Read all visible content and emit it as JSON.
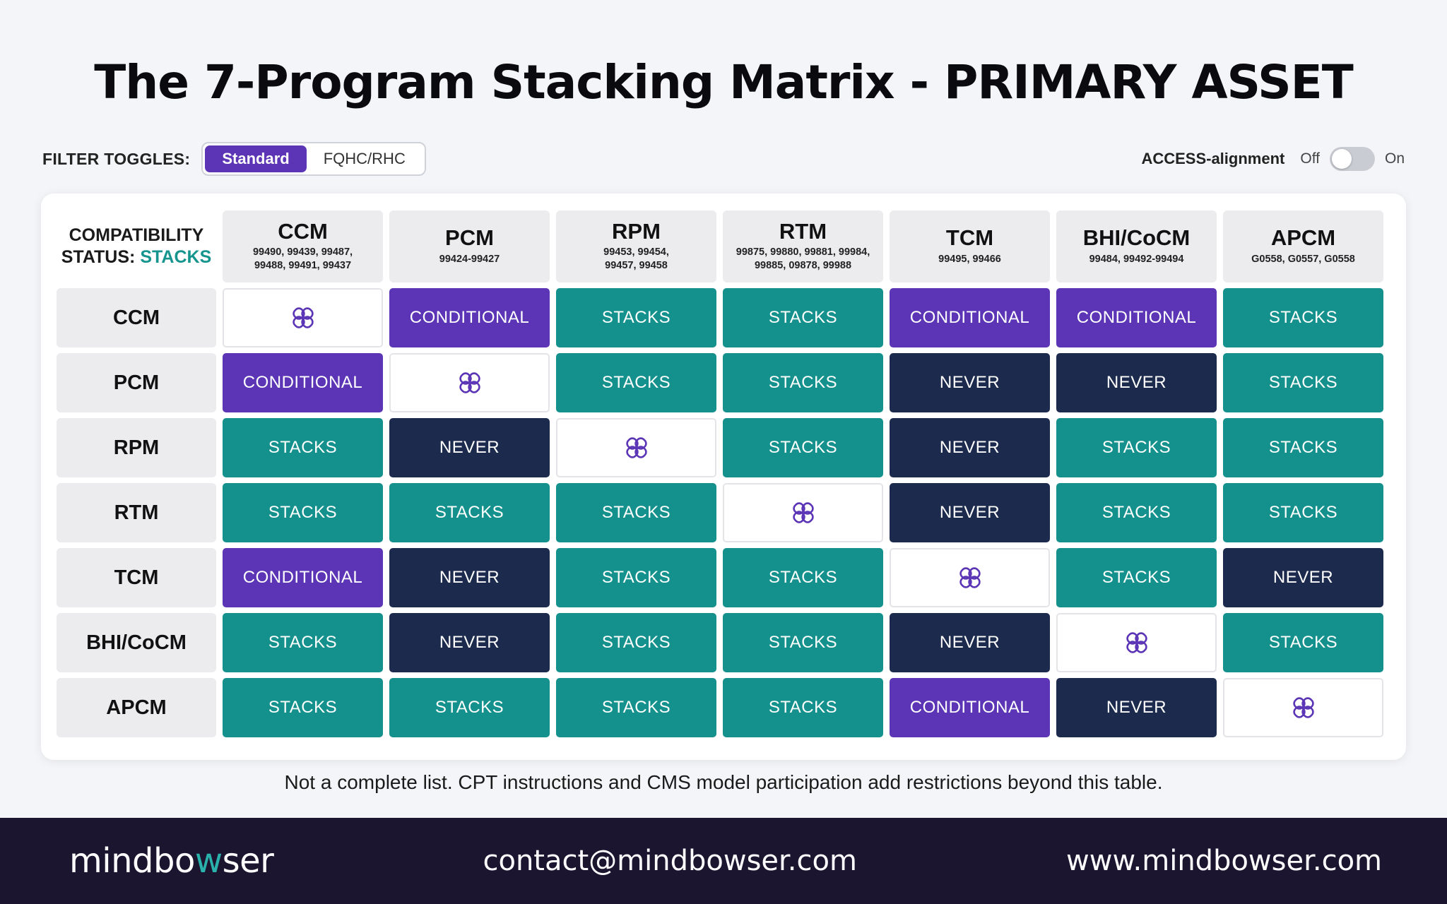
{
  "title": "The 7-Program Stacking Matrix - PRIMARY ASSET",
  "filters": {
    "label": "FILTER TOGGLES:",
    "options": [
      "Standard",
      "FQHC/RHC"
    ],
    "selected": "Standard"
  },
  "access_alignment": {
    "label": "ACCESS-alignment",
    "off_label": "Off",
    "on_label": "On",
    "state": "Off"
  },
  "matrix": {
    "corner_line1": "COMPATIBILITY",
    "corner_line2": "STATUS:",
    "corner_highlight": "STACKS",
    "columns": [
      {
        "code": "CCM",
        "cpt_line1": "99490, 99439, 99487,",
        "cpt_line2": "99488, 99491, 99437"
      },
      {
        "code": "PCM",
        "cpt_line1": "99424-99427",
        "cpt_line2": ""
      },
      {
        "code": "RPM",
        "cpt_line1": "99453, 99454,",
        "cpt_line2": "99457, 99458"
      },
      {
        "code": "RTM",
        "cpt_line1": "99875, 99880, 99881, 99984,",
        "cpt_line2": "99885, 09878, 99988"
      },
      {
        "code": "TCM",
        "cpt_line1": "99495, 99466",
        "cpt_line2": ""
      },
      {
        "code": "BHI/CoCM",
        "cpt_line1": "99484, 99492-99494",
        "cpt_line2": ""
      },
      {
        "code": "APCM",
        "cpt_line1": "G0558, G0557, G0558",
        "cpt_line2": ""
      }
    ],
    "rows": [
      {
        "label": "CCM",
        "cells": [
          "SELF",
          "CONDITIONAL",
          "STACKS",
          "STACKS",
          "CONDITIONAL",
          "CONDITIONAL",
          "STACKS"
        ]
      },
      {
        "label": "PCM",
        "cells": [
          "CONDITIONAL",
          "SELF",
          "STACKS",
          "STACKS",
          "NEVER",
          "NEVER",
          "STACKS"
        ]
      },
      {
        "label": "RPM",
        "cells": [
          "STACKS",
          "NEVER",
          "SELF",
          "STACKS",
          "NEVER",
          "STACKS",
          "STACKS"
        ]
      },
      {
        "label": "RTM",
        "cells": [
          "STACKS",
          "STACKS",
          "STACKS",
          "SELF",
          "NEVER",
          "STACKS",
          "STACKS"
        ]
      },
      {
        "label": "TCM",
        "cells": [
          "CONDITIONAL",
          "NEVER",
          "STACKS",
          "STACKS",
          "SELF",
          "STACKS",
          "NEVER"
        ]
      },
      {
        "label": "BHI/CoCM",
        "cells": [
          "STACKS",
          "NEVER",
          "STACKS",
          "STACKS",
          "NEVER",
          "SELF",
          "STACKS"
        ]
      },
      {
        "label": "APCM",
        "cells": [
          "STACKS",
          "STACKS",
          "STACKS",
          "STACKS",
          "CONDITIONAL",
          "NEVER",
          "SELF"
        ]
      }
    ],
    "status_colors": {
      "STACKS": "#14918c",
      "CONDITIONAL": "#5b35b5",
      "NEVER": "#1c2a4d"
    },
    "self_icon": "link-knot-icon"
  },
  "footnote": "Not a complete list. CPT instructions and CMS model participation add restrictions beyond this table.",
  "footer": {
    "logo_pre": "mindbo",
    "logo_accent": "w",
    "logo_post": "ser",
    "email": "contact@mindbowser.com",
    "website": "www.mindbowser.com"
  }
}
